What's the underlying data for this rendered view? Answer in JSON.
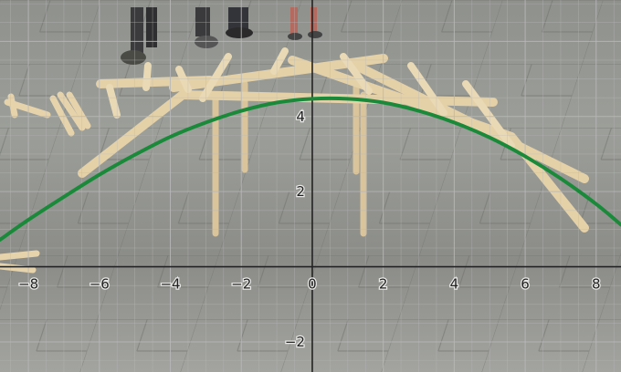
{
  "chart_data": {
    "type": "line",
    "title": "",
    "xlabel": "",
    "ylabel": "",
    "xlim": [
      -8.8,
      8.7
    ],
    "ylim": [
      -2.8,
      7.1
    ],
    "x_ticks": [
      -8,
      -6,
      -4,
      -2,
      0,
      2,
      4,
      6,
      8
    ],
    "y_ticks": [
      -2,
      2,
      4
    ],
    "grid": true,
    "background": "photo of a wooden popsicle-stick bridge on a stone floor, people's feet in the background",
    "series": [
      {
        "color": "#1a8a3a",
        "points": [
          [
            -8.8,
            0.72
          ],
          [
            -8,
            1.25
          ],
          [
            -7,
            1.86
          ],
          [
            -6,
            2.45
          ],
          [
            -5,
            2.98
          ],
          [
            -4,
            3.46
          ],
          [
            -3,
            3.84
          ],
          [
            -2,
            4.15
          ],
          [
            -1,
            4.37
          ],
          [
            0,
            4.47
          ],
          [
            1,
            4.47
          ],
          [
            2,
            4.37
          ],
          [
            3,
            4.15
          ],
          [
            4,
            3.84
          ],
          [
            5,
            3.44
          ],
          [
            6,
            2.94
          ],
          [
            7,
            2.35
          ],
          [
            8,
            1.67
          ],
          [
            8.7,
            1.12
          ]
        ]
      }
    ]
  },
  "colors": {
    "gridline": "#b9b9b9",
    "axis": "#222222",
    "tick_label": "#222222",
    "curve": "#1a8a3a"
  }
}
